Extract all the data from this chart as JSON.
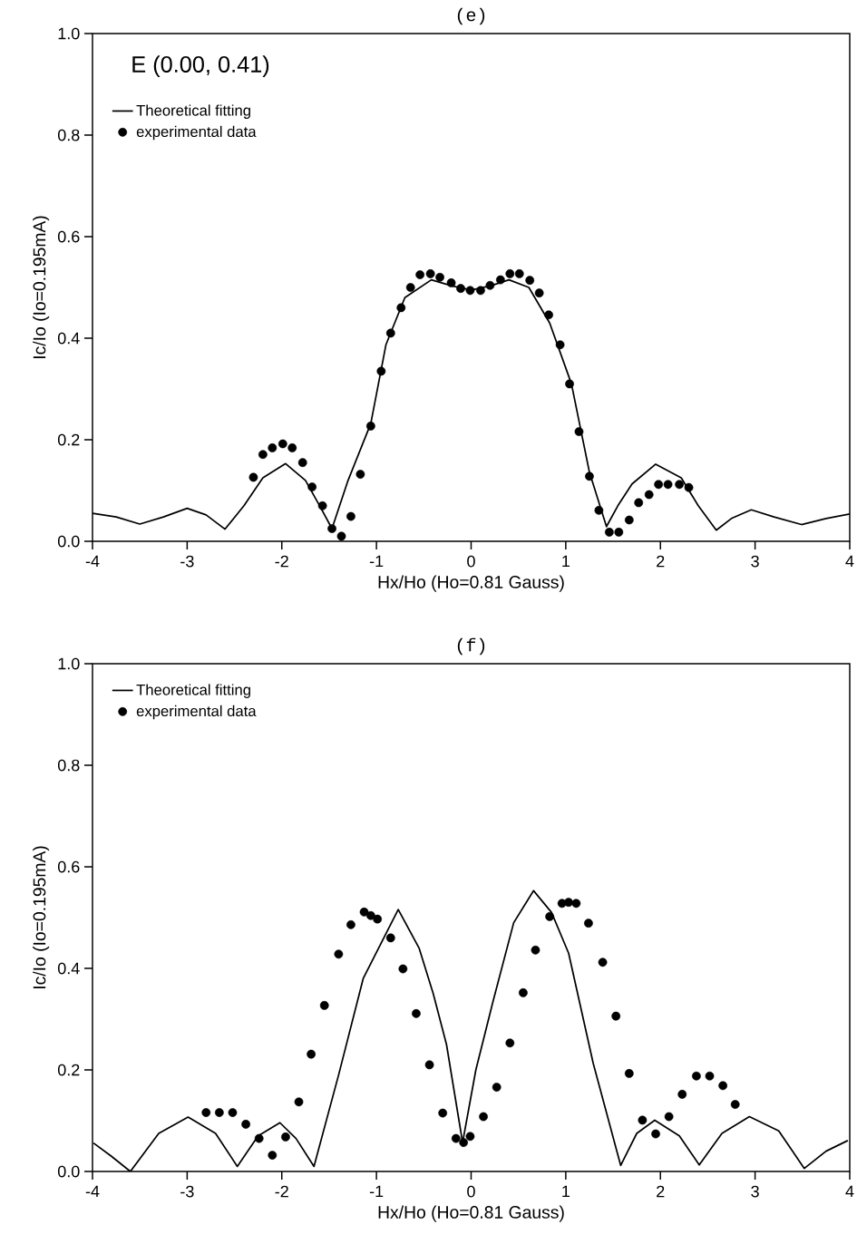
{
  "chart_data": [
    {
      "type": "line",
      "title": "(e)",
      "xlabel": "Hx/Ho (Ho=0.81 Gauss)",
      "ylabel": "Ic/Io (Io=0.195mA)",
      "annotations": [
        "E (0.00, 0.41)"
      ],
      "legend": "top left",
      "xlim": [
        -4,
        4
      ],
      "ylim": [
        0,
        1
      ],
      "xticks": [
        -4,
        -3,
        -2,
        -1,
        0,
        1,
        2,
        3,
        4
      ],
      "yticks": [
        {
          "value": 0,
          "label": "0.0"
        },
        {
          "value": 0.2,
          "label": "0.2"
        },
        {
          "value": 0.4,
          "label": "0.4"
        },
        {
          "value": 0.6,
          "label": "0.6"
        },
        {
          "value": 0.8,
          "label": "0.8"
        },
        {
          "value": 1.0,
          "label": "1.0"
        }
      ],
      "series": [
        {
          "name": "Theoretical fitting",
          "type": "line",
          "color": "#000000",
          "line_style": "solid",
          "marker": "none",
          "x": [
            -4,
            -3.75,
            -3.5,
            -3.25,
            -3.0,
            -2.8,
            -2.6,
            -2.4,
            -2.2,
            -1.96,
            -1.75,
            -1.6,
            -1.47,
            -1.3,
            -1.06,
            -0.9,
            -0.7,
            -0.42,
            -0.2,
            0,
            0.2,
            0.4,
            0.61,
            0.83,
            1.06,
            1.25,
            1.43,
            1.55,
            1.7,
            1.95,
            2.22,
            2.4,
            2.59,
            2.75,
            2.96,
            3.2,
            3.49,
            3.75,
            4
          ],
          "values": [
            0.055,
            0.048,
            0.034,
            0.048,
            0.065,
            0.052,
            0.024,
            0.07,
            0.125,
            0.153,
            0.12,
            0.07,
            0.025,
            0.12,
            0.232,
            0.387,
            0.48,
            0.515,
            0.503,
            0.495,
            0.503,
            0.515,
            0.5,
            0.43,
            0.31,
            0.136,
            0.029,
            0.07,
            0.113,
            0.152,
            0.125,
            0.07,
            0.022,
            0.045,
            0.062,
            0.048,
            0.033,
            0.045,
            0.054
          ]
        },
        {
          "name": "experimental data",
          "type": "scatter",
          "color": "#000000",
          "marker": "circle",
          "x": [
            -2.3,
            -2.2,
            -2.1,
            -1.99,
            -1.89,
            -1.78,
            -1.68,
            -1.57,
            -1.47,
            -1.37,
            -1.27,
            -1.17,
            -1.06,
            -0.95,
            -0.85,
            -0.74,
            -0.64,
            -0.54,
            -0.43,
            -0.33,
            -0.21,
            -0.11,
            -0.01,
            0.1,
            0.2,
            0.31,
            0.41,
            0.51,
            0.62,
            0.72,
            0.82,
            0.94,
            1.04,
            1.14,
            1.25,
            1.35,
            1.46,
            1.56,
            1.67,
            1.77,
            1.88,
            1.98,
            2.08,
            2.2,
            2.3
          ],
          "values": [
            0.126,
            0.171,
            0.184,
            0.192,
            0.184,
            0.155,
            0.107,
            0.07,
            0.025,
            0.01,
            0.049,
            0.132,
            0.227,
            0.335,
            0.41,
            0.46,
            0.5,
            0.525,
            0.527,
            0.52,
            0.509,
            0.498,
            0.494,
            0.494,
            0.504,
            0.515,
            0.527,
            0.527,
            0.514,
            0.489,
            0.446,
            0.387,
            0.31,
            0.216,
            0.128,
            0.061,
            0.018,
            0.018,
            0.042,
            0.076,
            0.092,
            0.112,
            0.112,
            0.112,
            0.106
          ]
        }
      ]
    },
    {
      "type": "line",
      "title": "(f)",
      "xlabel": "Hx/Ho (Ho=0.81 Gauss)",
      "ylabel": "Ic/Io (Io=0.195mA)",
      "legend": "top left",
      "xlim": [
        -4,
        4
      ],
      "ylim": [
        0,
        1
      ],
      "xticks": [
        -4,
        -3,
        -2,
        -1,
        0,
        1,
        2,
        3,
        4
      ],
      "yticks": [
        {
          "value": 0,
          "label": "0.0"
        },
        {
          "value": 0.2,
          "label": "0.2"
        },
        {
          "value": 0.4,
          "label": "0.4"
        },
        {
          "value": 0.6,
          "label": "0.6"
        },
        {
          "value": 0.8,
          "label": "0.8"
        },
        {
          "value": 1.0,
          "label": "1.0"
        }
      ],
      "series": [
        {
          "name": "Theoretical fitting",
          "type": "line",
          "color": "#000000",
          "line_style": "solid",
          "marker": "none",
          "x": [
            -3.99,
            -3.8,
            -3.6,
            -3.3,
            -2.99,
            -2.7,
            -2.47,
            -2.25,
            -2.02,
            -1.85,
            -1.66,
            -1.4,
            -1.14,
            -0.77,
            -0.55,
            -0.4,
            -0.26,
            -0.09,
            0.05,
            0.23,
            0.45,
            0.66,
            0.85,
            1.03,
            1.29,
            1.58,
            1.75,
            1.94,
            2.2,
            2.41,
            2.65,
            2.94,
            3.25,
            3.52,
            3.75,
            3.98
          ],
          "values": [
            0.056,
            0.03,
            0.0,
            0.075,
            0.107,
            0.075,
            0.01,
            0.07,
            0.096,
            0.065,
            0.01,
            0.19,
            0.38,
            0.516,
            0.44,
            0.35,
            0.25,
            0.057,
            0.2,
            0.334,
            0.49,
            0.553,
            0.51,
            0.43,
            0.213,
            0.012,
            0.075,
            0.101,
            0.07,
            0.013,
            0.075,
            0.108,
            0.08,
            0.006,
            0.04,
            0.061
          ]
        },
        {
          "name": "experimental data",
          "type": "scatter",
          "color": "#000000",
          "marker": "circle",
          "x": [
            -2.8,
            -2.66,
            -2.52,
            -2.38,
            -2.24,
            -2.1,
            -1.96,
            -1.82,
            -1.69,
            -1.55,
            -1.4,
            -1.27,
            -1.13,
            -1.06,
            -0.99,
            -0.85,
            -0.72,
            -0.58,
            -0.44,
            -0.3,
            -0.16,
            -0.08,
            -0.01,
            0.13,
            0.27,
            0.41,
            0.55,
            0.68,
            0.83,
            0.96,
            1.03,
            1.11,
            1.24,
            1.39,
            1.53,
            1.67,
            1.81,
            1.95,
            2.09,
            2.23,
            2.38,
            2.52,
            2.66,
            2.79
          ],
          "values": [
            0.116,
            0.116,
            0.116,
            0.093,
            0.065,
            0.032,
            0.068,
            0.137,
            0.231,
            0.327,
            0.428,
            0.486,
            0.511,
            0.504,
            0.497,
            0.46,
            0.399,
            0.311,
            0.21,
            0.115,
            0.065,
            0.057,
            0.069,
            0.108,
            0.166,
            0.253,
            0.352,
            0.436,
            0.502,
            0.528,
            0.53,
            0.528,
            0.489,
            0.412,
            0.306,
            0.193,
            0.101,
            0.074,
            0.108,
            0.152,
            0.188,
            0.188,
            0.169,
            0.132
          ]
        }
      ]
    }
  ]
}
